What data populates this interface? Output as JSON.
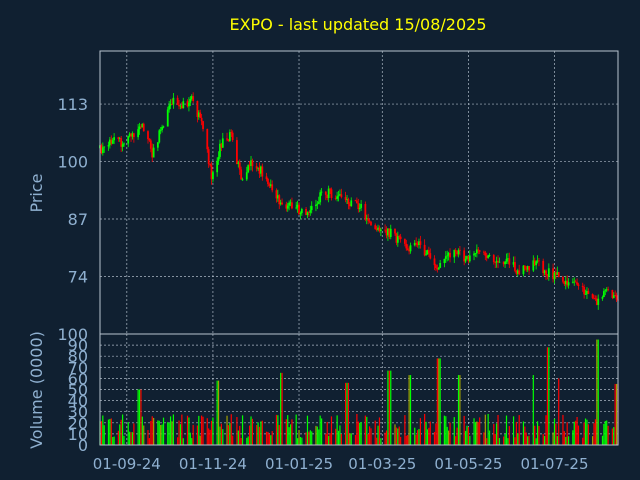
{
  "chart_data": [
    {
      "type": "candlestick",
      "title": "EXPO - last updated 15/08/2025",
      "ylabel": "Price",
      "ylim": [
        61,
        125
      ],
      "yticks": [
        74,
        87,
        100,
        113
      ],
      "xlim": [
        "2024-08-13",
        "2025-08-15"
      ],
      "xticks": [
        {
          "date": "2024-09-01",
          "label": "01-09-24"
        },
        {
          "date": "2024-11-01",
          "label": "01-11-24"
        },
        {
          "date": "2025-01-01",
          "label": "01-01-25"
        },
        {
          "date": "2025-03-01",
          "label": "01-03-25"
        },
        {
          "date": "2025-05-01",
          "label": "01-05-25"
        },
        {
          "date": "2025-07-01",
          "label": "01-07-25"
        }
      ],
      "grid": true,
      "colors": {
        "up": "#00ff00",
        "down": "#ff0000",
        "title": "#ffff00"
      },
      "series_close": [
        [
          "2024-08-15",
          103
        ],
        [
          "2024-08-22",
          105
        ],
        [
          "2024-08-29",
          104
        ],
        [
          "2024-09-05",
          106
        ],
        [
          "2024-09-12",
          108
        ],
        [
          "2024-09-19",
          102
        ],
        [
          "2024-09-26",
          108
        ],
        [
          "2024-10-03",
          114
        ],
        [
          "2024-10-10",
          113
        ],
        [
          "2024-10-17",
          114
        ],
        [
          "2024-10-24",
          109
        ],
        [
          "2024-10-31",
          97
        ],
        [
          "2024-11-07",
          104
        ],
        [
          "2024-11-14",
          106
        ],
        [
          "2024-11-21",
          96
        ],
        [
          "2024-11-28",
          100
        ],
        [
          "2024-12-05",
          98
        ],
        [
          "2024-12-12",
          94
        ],
        [
          "2024-12-19",
          91
        ],
        [
          "2024-12-26",
          90
        ],
        [
          "2025-01-02",
          89
        ],
        [
          "2025-01-09",
          89
        ],
        [
          "2025-01-16",
          92
        ],
        [
          "2025-01-23",
          93
        ],
        [
          "2025-01-30",
          92
        ],
        [
          "2025-02-06",
          91
        ],
        [
          "2025-02-13",
          90
        ],
        [
          "2025-02-20",
          86
        ],
        [
          "2025-02-27",
          85
        ],
        [
          "2025-03-06",
          84
        ],
        [
          "2025-03-13",
          82
        ],
        [
          "2025-03-20",
          80
        ],
        [
          "2025-03-27",
          81
        ],
        [
          "2025-04-03",
          79
        ],
        [
          "2025-04-10",
          76
        ],
        [
          "2025-04-17",
          79
        ],
        [
          "2025-04-24",
          79
        ],
        [
          "2025-05-01",
          78
        ],
        [
          "2025-05-08",
          80
        ],
        [
          "2025-05-15",
          78
        ],
        [
          "2025-05-22",
          77
        ],
        [
          "2025-05-29",
          78
        ],
        [
          "2025-06-05",
          75
        ],
        [
          "2025-06-12",
          76
        ],
        [
          "2025-06-19",
          77
        ],
        [
          "2025-06-26",
          75
        ],
        [
          "2025-07-03",
          74
        ],
        [
          "2025-07-10",
          72
        ],
        [
          "2025-07-17",
          72
        ],
        [
          "2025-07-24",
          70
        ],
        [
          "2025-07-31",
          68
        ],
        [
          "2025-08-07",
          71
        ],
        [
          "2025-08-14",
          69
        ]
      ]
    },
    {
      "type": "bar",
      "ylabel": "Volume (0000)",
      "ylim": [
        0,
        100
      ],
      "yticks": [
        0,
        10,
        20,
        30,
        40,
        50,
        60,
        70,
        80,
        90,
        100
      ],
      "grid": true,
      "colors": {
        "up": "#00ff00",
        "down": "#ff0000",
        "neutral": "#a0a000"
      },
      "peaks": [
        [
          "2024-09-10",
          50
        ],
        [
          "2024-11-04",
          58
        ],
        [
          "2024-12-20",
          65
        ],
        [
          "2025-02-04",
          56
        ],
        [
          "2025-03-06",
          67
        ],
        [
          "2025-03-21",
          63
        ],
        [
          "2025-04-10",
          78
        ],
        [
          "2025-04-25",
          63
        ],
        [
          "2025-06-15",
          63
        ],
        [
          "2025-06-27",
          88
        ],
        [
          "2025-07-05",
          60
        ],
        [
          "2025-08-01",
          95
        ],
        [
          "2025-08-14",
          55
        ]
      ]
    }
  ]
}
